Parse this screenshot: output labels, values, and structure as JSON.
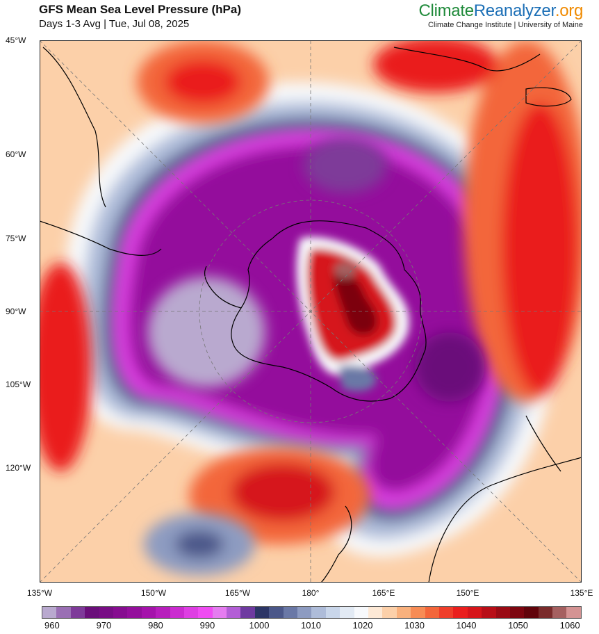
{
  "header": {
    "title": "GFS Mean Sea Level Pressure (hPa)",
    "subtitle": "Days 1-3 Avg | Tue, Jul 08, 2025"
  },
  "brand": {
    "part1": "Climate",
    "part2": "Reanalyzer",
    "part3": ".org",
    "tagline": "Climate Change Institute | University of Maine"
  },
  "map": {
    "projection": "south-polar stereographic",
    "left_labels": [
      "45°W",
      "60°W",
      "75°W",
      "90°W",
      "105°W",
      "120°W"
    ],
    "bottom_labels": [
      "135°W",
      "150°W",
      "165°W",
      "180°",
      "165°E",
      "150°E",
      "135°E"
    ]
  },
  "colorbar": {
    "units": "hPa",
    "range": [
      958,
      1062
    ],
    "tick_labels": [
      "960",
      "970",
      "980",
      "990",
      "1000",
      "1010",
      "1020",
      "1030",
      "1040",
      "1050",
      "1060"
    ],
    "colors": [
      "#b9a9cf",
      "#9a6fb4",
      "#7e3a99",
      "#6a0f7a",
      "#780d85",
      "#860d90",
      "#940f9c",
      "#a513ab",
      "#b71ebc",
      "#cb2bd0",
      "#de3ee3",
      "#ef4cf2",
      "#e57cf0",
      "#b35ed6",
      "#6e3aa0",
      "#2c3566",
      "#4b5789",
      "#6a78a6",
      "#8d9bc1",
      "#aebcd9",
      "#c9d6ea",
      "#e2eaf4",
      "#f7f9fc",
      "#fde9d6",
      "#fcd0a9",
      "#f9b17d",
      "#f78c55",
      "#f3663a",
      "#ef3e2a",
      "#ea1f1d",
      "#d6151a",
      "#b80e17",
      "#9a0a14",
      "#7d0610",
      "#61040b",
      "#7a2b2b",
      "#a56060",
      "#d49393"
    ]
  }
}
